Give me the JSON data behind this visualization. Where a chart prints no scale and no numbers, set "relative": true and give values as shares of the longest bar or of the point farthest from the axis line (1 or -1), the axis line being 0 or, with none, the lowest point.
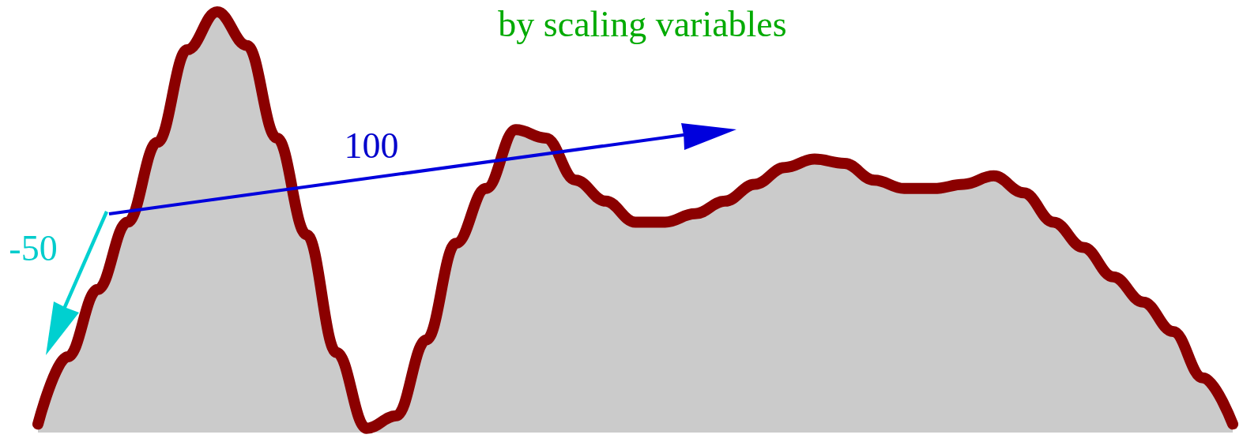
{
  "chart_data": {
    "type": "area",
    "relative": true,
    "title": "by scaling variables",
    "categories": [
      null,
      null,
      null,
      null,
      null,
      null,
      null,
      null,
      null,
      null,
      null,
      null,
      null,
      null,
      null,
      null,
      null,
      null,
      null,
      null,
      null,
      null,
      null,
      null,
      null,
      null,
      null,
      null,
      null,
      null,
      null,
      null,
      null,
      null,
      null,
      null,
      null,
      null,
      null,
      null,
      null
    ],
    "series": [
      {
        "color": "#8b0000",
        "values": [
          0.02,
          0.18,
          0.34,
          0.5,
          0.69,
          0.91,
          1.0,
          0.92,
          0.7,
          0.47,
          0.19,
          0.01,
          0.04,
          0.22,
          0.45,
          0.58,
          0.72,
          0.7,
          0.6,
          0.55,
          0.5,
          0.5,
          0.52,
          0.55,
          0.59,
          0.63,
          0.65,
          0.64,
          0.6,
          0.58,
          0.58,
          0.59,
          0.61,
          0.57,
          0.5,
          0.44,
          0.37,
          0.31,
          0.24,
          0.13,
          0.02
        ]
      }
    ],
    "annotations": [
      "100",
      "-50"
    ],
    "line_style": "solid"
  }
}
